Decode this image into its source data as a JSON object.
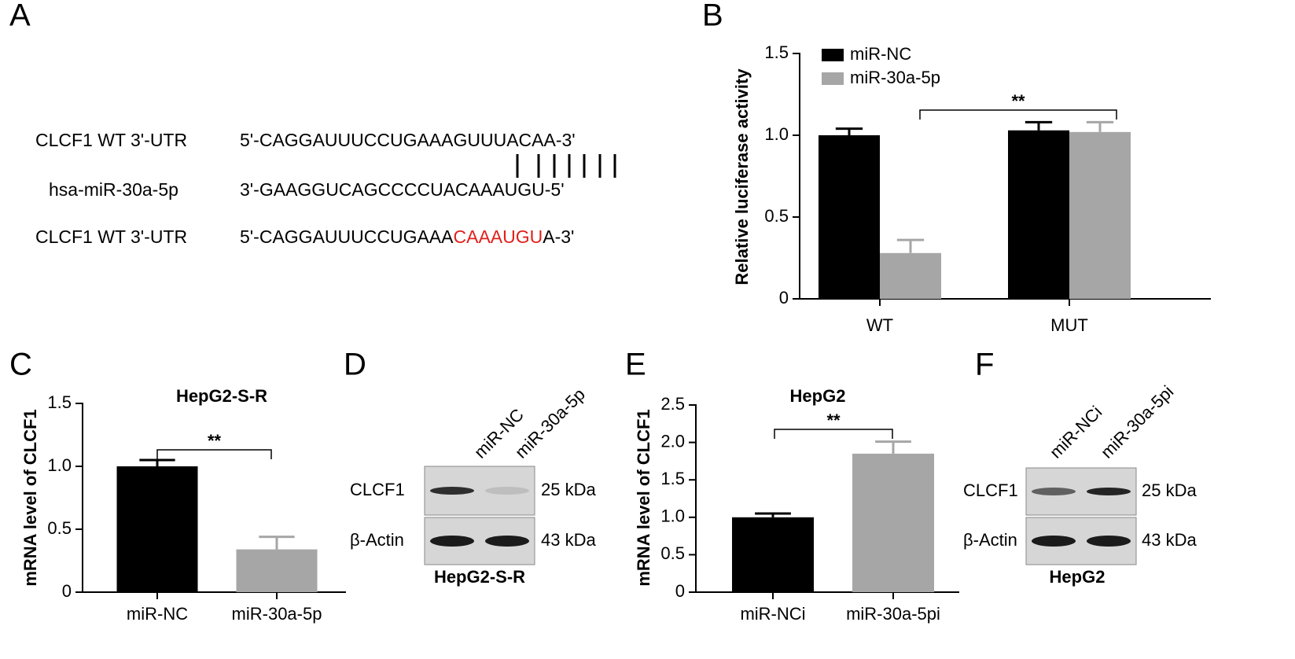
{
  "panel_labels": [
    "A",
    "B",
    "C",
    "D",
    "E",
    "F"
  ],
  "panel_a": {
    "rows": [
      {
        "label": "CLCF1 WT 3'-UTR",
        "sequence": "5'-CAGGAUUUCCUGAAAGUUUACAA-3'"
      },
      {
        "label": "hsa-miR-30a-5p",
        "sequence": "3'-GAAGGUCAGCCCCUACAAAUGU-5'"
      },
      {
        "label": "CLCF1 WT 3'-UTR",
        "sequence_parts": [
          "5'-CAGGAUUUCCUGAAA",
          "CAAAUGU",
          "A-3'"
        ]
      }
    ]
  },
  "chart_data": [
    {
      "type": "bar",
      "y_label": "Relative luciferase activity",
      "categories": [
        "WT",
        "MUT"
      ],
      "series": [
        {
          "name": "miR-NC",
          "color": "#000000",
          "values": [
            1.0,
            1.03
          ],
          "errors": [
            0.04,
            0.05
          ]
        },
        {
          "name": "miR-30a-5p",
          "color": "#a6a6a6",
          "values": [
            0.28,
            1.02
          ],
          "errors": [
            0.08,
            0.06
          ]
        }
      ],
      "ylim": [
        0,
        1.5
      ],
      "yticks": [
        0,
        0.5,
        {
          "value": 1,
          "label": "1.0"
        },
        1.5
      ],
      "annotation": "**"
    },
    {
      "type": "bar",
      "title": "HepG2-S-R",
      "y_label": "mRNA level of CLCF1",
      "categories": [
        "miR-NC",
        "miR-30a-5p"
      ],
      "values": [
        1.0,
        0.34
      ],
      "errors": [
        0.05,
        0.1
      ],
      "colors": [
        "#000000",
        "#a6a6a6"
      ],
      "ylim": [
        0,
        1.5
      ],
      "yticks": [
        0,
        0.5,
        {
          "value": 1,
          "label": "1.0"
        },
        1.5
      ],
      "annotation": "**"
    },
    {
      "type": "bar",
      "title": "HepG2",
      "y_label": "mRNA level of CLCF1",
      "categories": [
        "miR-NCi",
        "miR-30a-5pi"
      ],
      "values": [
        1.0,
        1.85
      ],
      "errors": [
        0.05,
        0.16
      ],
      "colors": [
        "#000000",
        "#a6a6a6"
      ],
      "ylim": [
        0,
        2.5
      ],
      "yticks": [
        0,
        0.5,
        {
          "value": 1,
          "label": "1.0"
        },
        1.5,
        {
          "value": 2,
          "label": "2.0"
        },
        2.5
      ],
      "annotation": "**"
    }
  ],
  "blots": [
    {
      "lanes": [
        "miR-NC",
        "miR-30a-5p"
      ],
      "rows": [
        {
          "label": "CLCF1",
          "size": "25 kDa"
        },
        {
          "label": "β-Actin",
          "size": "43 kDa"
        }
      ],
      "caption": "HepG2-S-R"
    },
    {
      "lanes": [
        "miR-NCi",
        "miR-30a-5pi"
      ],
      "rows": [
        {
          "label": "CLCF1",
          "size": "25 kDa"
        },
        {
          "label": "β-Actin",
          "size": "43 kDa"
        }
      ],
      "caption": "HepG2"
    }
  ]
}
